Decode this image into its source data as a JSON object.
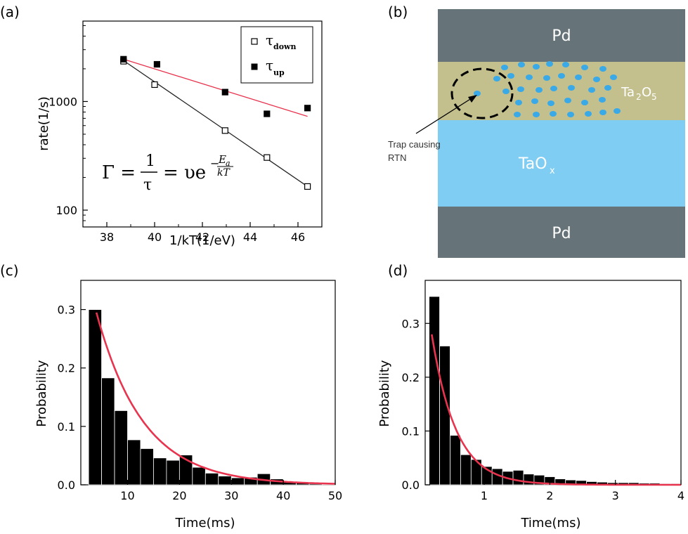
{
  "panels": {
    "a": "(a)",
    "b": "(b)",
    "c": "(c)",
    "d": "(d)"
  },
  "colors": {
    "fit_red": "#e8344e",
    "bar_black": "#000000",
    "pd_gray": "#667378",
    "ta2o5_olive": "#c3c08e",
    "taox_blue": "#7fcdf2",
    "dot_blue": "#3aa9e8"
  },
  "diagram": {
    "top_layer": "Pd",
    "middle_layer_main": "Ta",
    "middle_layer_sub1": "2",
    "middle_layer_o": "O",
    "middle_layer_sub2": "5",
    "lower_layer_main": "TaO",
    "lower_layer_sub": "x",
    "bottom_layer": "Pd",
    "annotation_line1": "Trap causing",
    "annotation_line2": "RTN"
  },
  "chart_data": [
    {
      "type": "scatter",
      "panel": "(a)",
      "xlabel": "1/kT(1/eV)",
      "ylabel": "rate(1/s)",
      "xlim": [
        37,
        47
      ],
      "ylim": [
        70,
        5500
      ],
      "yscale": "log",
      "xticks": [
        "38",
        "40",
        "42",
        "44",
        "46"
      ],
      "yticks": [
        "100",
        "1000"
      ],
      "legend": {
        "placement": "top-right"
      },
      "equation": {
        "lhs": "Γ =",
        "frac_num": "1",
        "frac_den": "τ",
        "mid": "=",
        "rhs": "υe",
        "exp_num": "E",
        "exp_num_sub": "a",
        "exp_den": "kT",
        "exp_sign": "−"
      },
      "series": [
        {
          "name": "τ",
          "name_sub": "down",
          "marker": "open-square",
          "x": [
            38.7,
            40.0,
            42.95,
            44.7,
            46.4
          ],
          "y": [
            2350,
            1430,
            540,
            305,
            165
          ],
          "fit": {
            "x": [
              38.7,
              46.4
            ],
            "y": [
              2380,
              165
            ]
          }
        },
        {
          "name": "τ",
          "name_sub": "up",
          "marker": "filled-square",
          "x": [
            38.7,
            40.1,
            42.95,
            44.7,
            46.4
          ],
          "y": [
            2450,
            2200,
            1220,
            770,
            870
          ],
          "fit": {
            "x": [
              38.7,
              46.4
            ],
            "y": [
              2450,
              730
            ]
          }
        }
      ]
    },
    {
      "type": "bar",
      "panel": "(c)",
      "xlabel": "Time(ms)",
      "ylabel": "Probability",
      "xlim": [
        1,
        50
      ],
      "ylim": [
        0,
        0.35
      ],
      "xticks": [
        "10",
        "20",
        "30",
        "40",
        "50"
      ],
      "yticks": [
        "0.0",
        "0.1",
        "0.2",
        "0.3"
      ],
      "bin_width": 2.5,
      "bins_start": [
        2.5,
        5,
        7.5,
        10,
        12.5,
        15,
        17.5,
        20,
        22.5,
        25,
        27.5,
        30,
        32.5,
        35,
        37.5,
        40,
        42.5,
        45,
        47.5
      ],
      "values": [
        0.3,
        0.183,
        0.127,
        0.077,
        0.062,
        0.046,
        0.042,
        0.051,
        0.03,
        0.02,
        0.015,
        0.012,
        0.013,
        0.019,
        0.01,
        0.005,
        0.003,
        0.002,
        0.001
      ],
      "fit": {
        "type": "exponential",
        "x_from": 4,
        "x_to": 50,
        "a": 0.46,
        "tau": 9.0
      }
    },
    {
      "type": "bar",
      "panel": "(d)",
      "xlabel": "Time(ms)",
      "ylabel": "Probability",
      "xlim": [
        0.1,
        4
      ],
      "ylim": [
        0,
        0.38
      ],
      "xticks": [
        "1",
        "2",
        "3",
        "4"
      ],
      "yticks": [
        "0.0",
        "0.1",
        "0.2",
        "0.3"
      ],
      "bin_width": 0.16,
      "bins_start": [
        0.16,
        0.32,
        0.48,
        0.64,
        0.8,
        0.96,
        1.12,
        1.28,
        1.44,
        1.6,
        1.76,
        1.92,
        2.08,
        2.24,
        2.4,
        2.56,
        2.72,
        2.88,
        3.04,
        3.2,
        3.36,
        3.52,
        3.68,
        3.84
      ],
      "values": [
        0.35,
        0.258,
        0.092,
        0.056,
        0.047,
        0.034,
        0.03,
        0.025,
        0.027,
        0.02,
        0.018,
        0.015,
        0.011,
        0.009,
        0.008,
        0.006,
        0.005,
        0.004,
        0.004,
        0.004,
        0.003,
        0.003,
        0.002,
        0.002
      ],
      "fit": {
        "type": "exponential",
        "x_from": 0.2,
        "x_to": 4,
        "a": 0.48,
        "tau": 0.37
      }
    }
  ]
}
